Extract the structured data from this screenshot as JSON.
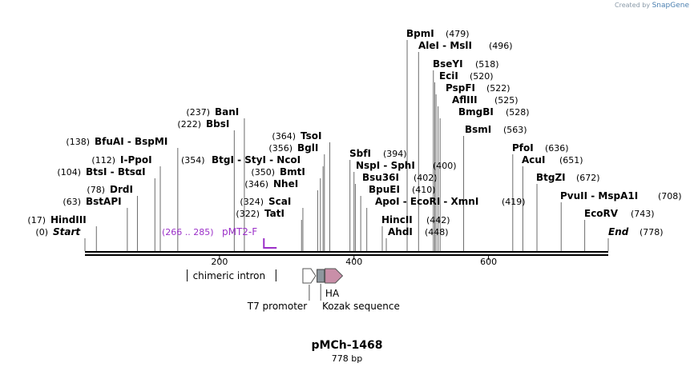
{
  "credit": {
    "prefix": "Created by",
    "brand": "SnapGene"
  },
  "plasmid": {
    "name": "pMCh-1468",
    "size_label": "778 bp",
    "length": 778
  },
  "sites": [
    {
      "name": "Start",
      "pos": 0,
      "pos_label": "(0)",
      "style": "italic"
    },
    {
      "name": "HindIII",
      "pos": 17,
      "pos_label": "(17)"
    },
    {
      "name": "BstAPI",
      "pos": 63,
      "pos_label": "(63)"
    },
    {
      "name": "DrdI",
      "pos": 78,
      "pos_label": "(78)"
    },
    {
      "name": "BtsI - BtsαI",
      "pos": 104,
      "pos_label": "(104)"
    },
    {
      "name": "I-PpoI",
      "pos": 112,
      "pos_label": "(112)"
    },
    {
      "name": "BfuAI - BspMI",
      "pos": 138,
      "pos_label": "(138)"
    },
    {
      "name": "BbsI",
      "pos": 222,
      "pos_label": "(222)"
    },
    {
      "name": "BanI",
      "pos": 237,
      "pos_label": "(237)"
    },
    {
      "name": "BtgI - StyI - NcoI",
      "pos": 354,
      "pos_label": "(354)",
      "label_first": true
    },
    {
      "name": "TatI",
      "pos": 322,
      "pos_label": "(322)"
    },
    {
      "name": "ScaI",
      "pos": 324,
      "pos_label": "(324)"
    },
    {
      "name": "NheI",
      "pos": 346,
      "pos_label": "(346)"
    },
    {
      "name": "BmtI",
      "pos": 350,
      "pos_label": "(350)"
    },
    {
      "name": "BglI",
      "pos": 356,
      "pos_label": "(356)"
    },
    {
      "name": "TsoI",
      "pos": 364,
      "pos_label": "(364)"
    },
    {
      "name": "AhdI",
      "pos": 448,
      "pos_label": "(448)",
      "label_first": true
    },
    {
      "name": "HincII",
      "pos": 442,
      "pos_label": "(442)",
      "label_first": true
    },
    {
      "name": "ApoI - EcoRI - XmnI",
      "pos": 419,
      "pos_label": "(419)",
      "label_first": true
    },
    {
      "name": "BpuEI",
      "pos": 410,
      "pos_label": "(410)",
      "label_first": true
    },
    {
      "name": "Bsu36I",
      "pos": 402,
      "pos_label": "(402)",
      "label_first": true
    },
    {
      "name": "NspI - SphI",
      "pos": 400,
      "pos_label": "(400)",
      "label_first": true
    },
    {
      "name": "SbfI",
      "pos": 394,
      "pos_label": "(394)",
      "label_first": true
    },
    {
      "name": "BpmI",
      "pos": 479,
      "pos_label": "(479)",
      "label_first": true
    },
    {
      "name": "AleI - MslI",
      "pos": 496,
      "pos_label": "(496)",
      "label_first": true
    },
    {
      "name": "BseYI",
      "pos": 518,
      "pos_label": "(518)",
      "label_first": true
    },
    {
      "name": "EciI",
      "pos": 520,
      "pos_label": "(520)",
      "label_first": true
    },
    {
      "name": "PspFI",
      "pos": 522,
      "pos_label": "(522)",
      "label_first": true
    },
    {
      "name": "AflIII",
      "pos": 525,
      "pos_label": "(525)",
      "label_first": true
    },
    {
      "name": "BmgBI",
      "pos": 528,
      "pos_label": "(528)",
      "label_first": true
    },
    {
      "name": "BsmI",
      "pos": 563,
      "pos_label": "(563)",
      "label_first": true
    },
    {
      "name": "PfoI",
      "pos": 636,
      "pos_label": "(636)",
      "label_first": true
    },
    {
      "name": "AcuI",
      "pos": 651,
      "pos_label": "(651)",
      "label_first": true
    },
    {
      "name": "BtgZI",
      "pos": 672,
      "pos_label": "(672)",
      "label_first": true
    },
    {
      "name": "PvuII - MspA1I",
      "pos": 708,
      "pos_label": "(708)",
      "label_first": true
    },
    {
      "name": "EcoRV",
      "pos": 743,
      "pos_label": "(743)",
      "label_first": true
    },
    {
      "name": "End",
      "pos": 778,
      "pos_label": "(778)",
      "label_first": true,
      "style": "italic"
    }
  ],
  "primer": {
    "name": "pMT2-F",
    "range_label": "(266 .. 285)",
    "start": 266,
    "end": 285,
    "color": "#9b30c8"
  },
  "ticks": [
    {
      "label": "200",
      "pos": 200
    },
    {
      "label": "400",
      "pos": 400
    },
    {
      "label": "600",
      "pos": 600
    }
  ],
  "features": {
    "intron": {
      "name": "chimeric intron",
      "start": 152,
      "end": 284
    },
    "t7": {
      "name": "T7 promoter",
      "start": 324,
      "end": 343,
      "color": "#ffffff"
    },
    "kozak": {
      "name": "Kozak sequence",
      "start": 345,
      "end": 356,
      "color": "#8e979e"
    },
    "ha": {
      "name": "HA",
      "start": 357,
      "end": 383,
      "color": "#c98fa8"
    }
  }
}
